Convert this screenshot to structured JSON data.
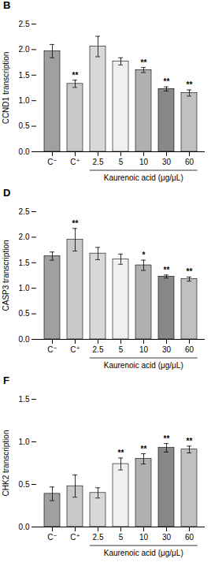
{
  "chart_data": [
    {
      "type": "bar",
      "title": "B",
      "ylabel": "CCND1 transcription",
      "categories": [
        "C⁻",
        "C⁺",
        "2.5",
        "5",
        "10",
        "30",
        "60"
      ],
      "values": [
        1.97,
        1.33,
        2.06,
        1.77,
        1.6,
        1.23,
        1.15
      ],
      "errors": [
        0.13,
        0.07,
        0.2,
        0.07,
        0.05,
        0.04,
        0.06
      ],
      "colors": [
        "#a0a0a0",
        "#c8c8c8",
        "#d8d8d8",
        "#f0f0f0",
        "#b0b0b0",
        "#888888",
        "#c0c0c0"
      ],
      "ylim": [
        0,
        2.5
      ],
      "yticks": [
        {
          "value": 0,
          "label": "0.0"
        },
        0.5,
        {
          "value": 1,
          "label": "1.0"
        },
        1.5,
        {
          "value": 2,
          "label": "2.0"
        },
        2.5
      ],
      "annotations": [
        {
          "text": "**",
          "category": "C⁺"
        },
        {
          "text": "**",
          "category": "10"
        },
        {
          "text": "**",
          "category": "30"
        },
        {
          "text": "**",
          "category": "60"
        },
        {
          "text": "Kaurenoic acid (μg/μL)",
          "span": [
            "2.5",
            "60"
          ]
        }
      ]
    },
    {
      "type": "bar",
      "title": "D",
      "ylabel": "CASP3 transcription",
      "categories": [
        "C⁻",
        "C⁺",
        "2.5",
        "5",
        "10",
        "30",
        "60"
      ],
      "values": [
        1.63,
        1.95,
        1.68,
        1.57,
        1.45,
        1.23,
        1.18
      ],
      "errors": [
        0.08,
        0.22,
        0.12,
        0.1,
        0.1,
        0.03,
        0.04
      ],
      "colors": [
        "#a0a0a0",
        "#c8c8c8",
        "#d8d8d8",
        "#f0f0f0",
        "#b0b0b0",
        "#888888",
        "#c0c0c0"
      ],
      "ylim": [
        0,
        2.5
      ],
      "yticks": [
        {
          "value": 0,
          "label": "0.0"
        },
        0.5,
        {
          "value": 1,
          "label": "1.0"
        },
        1.5,
        {
          "value": 2,
          "label": "2.0"
        },
        2.5
      ],
      "annotations": [
        {
          "text": "**",
          "category": "C⁺"
        },
        {
          "text": "*",
          "category": "10"
        },
        {
          "text": "**",
          "category": "30"
        },
        {
          "text": "**",
          "category": "60"
        },
        {
          "text": "Kaurenoic acid (μg/μL)",
          "span": [
            "2.5",
            "60"
          ]
        }
      ]
    },
    {
      "type": "bar",
      "title": "F",
      "ylabel": "CHK2 transcription",
      "categories": [
        "C⁻",
        "C⁺",
        "2.5",
        "5",
        "10",
        "30",
        "60"
      ],
      "values": [
        0.39,
        0.48,
        0.4,
        0.74,
        0.8,
        0.93,
        0.91
      ],
      "errors": [
        0.08,
        0.13,
        0.06,
        0.07,
        0.06,
        0.05,
        0.04
      ],
      "colors": [
        "#a0a0a0",
        "#c8c8c8",
        "#d8d8d8",
        "#f0f0f0",
        "#b0b0b0",
        "#888888",
        "#c0c0c0"
      ],
      "ylim": [
        0,
        1.5
      ],
      "yticks": [
        {
          "value": 0,
          "label": "0.0"
        },
        0.5,
        {
          "value": 1,
          "label": "1.0"
        },
        1.5
      ],
      "annotations": [
        {
          "text": "**",
          "category": "5"
        },
        {
          "text": "**",
          "category": "10"
        },
        {
          "text": "**",
          "category": "30"
        },
        {
          "text": "**",
          "category": "60"
        },
        {
          "text": "Kaurenoic acid (μg/μL)",
          "span": [
            "2.5",
            "60"
          ]
        }
      ]
    }
  ]
}
